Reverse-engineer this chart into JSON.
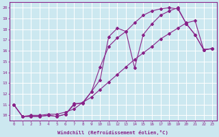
{
  "xlabel": "Windchill (Refroidissement éolien,°C)",
  "background_color": "#cce8f0",
  "line_color": "#882288",
  "grid_color": "#ffffff",
  "xlim": [
    -0.5,
    23.5
  ],
  "ylim": [
    9.5,
    20.5
  ],
  "xticks": [
    0,
    1,
    2,
    3,
    4,
    5,
    6,
    7,
    8,
    9,
    10,
    11,
    12,
    13,
    14,
    15,
    16,
    17,
    18,
    19,
    20,
    21,
    22,
    23
  ],
  "yticks": [
    10,
    11,
    12,
    13,
    14,
    15,
    16,
    17,
    18,
    19,
    20
  ],
  "line1_x": [
    0,
    1,
    2,
    3,
    4,
    5,
    6,
    7,
    8,
    9,
    10,
    11,
    12,
    13,
    14,
    15,
    16,
    17,
    18,
    19,
    20,
    21,
    22,
    23
  ],
  "line1_y": [
    11.0,
    9.9,
    9.9,
    9.9,
    10.0,
    9.9,
    10.1,
    11.1,
    11.1,
    12.2,
    13.3,
    17.3,
    18.1,
    17.8,
    14.4,
    17.5,
    18.5,
    19.3,
    19.7,
    20.0,
    18.5,
    17.5,
    16.1,
    16.2
  ],
  "line2_x": [
    0,
    1,
    2,
    3,
    4,
    5,
    6,
    7,
    8,
    9,
    10,
    11,
    12,
    13,
    14,
    15,
    16,
    17,
    18,
    19,
    20,
    21,
    22,
    23
  ],
  "line2_y": [
    11.0,
    9.9,
    9.9,
    9.9,
    10.0,
    9.9,
    10.1,
    11.0,
    11.2,
    12.2,
    14.5,
    16.4,
    17.2,
    17.8,
    18.6,
    19.3,
    19.7,
    19.9,
    20.0,
    19.9,
    18.5,
    17.5,
    16.1,
    16.2
  ],
  "line3_x": [
    0,
    1,
    2,
    3,
    4,
    5,
    6,
    7,
    8,
    9,
    10,
    11,
    12,
    13,
    14,
    15,
    16,
    17,
    18,
    19,
    20,
    21,
    22,
    23
  ],
  "line3_y": [
    11.0,
    9.9,
    10.0,
    10.0,
    10.1,
    10.1,
    10.3,
    10.6,
    11.2,
    11.7,
    12.4,
    13.1,
    13.8,
    14.5,
    15.2,
    15.8,
    16.4,
    17.1,
    17.6,
    18.1,
    18.6,
    18.8,
    16.1,
    16.2
  ]
}
